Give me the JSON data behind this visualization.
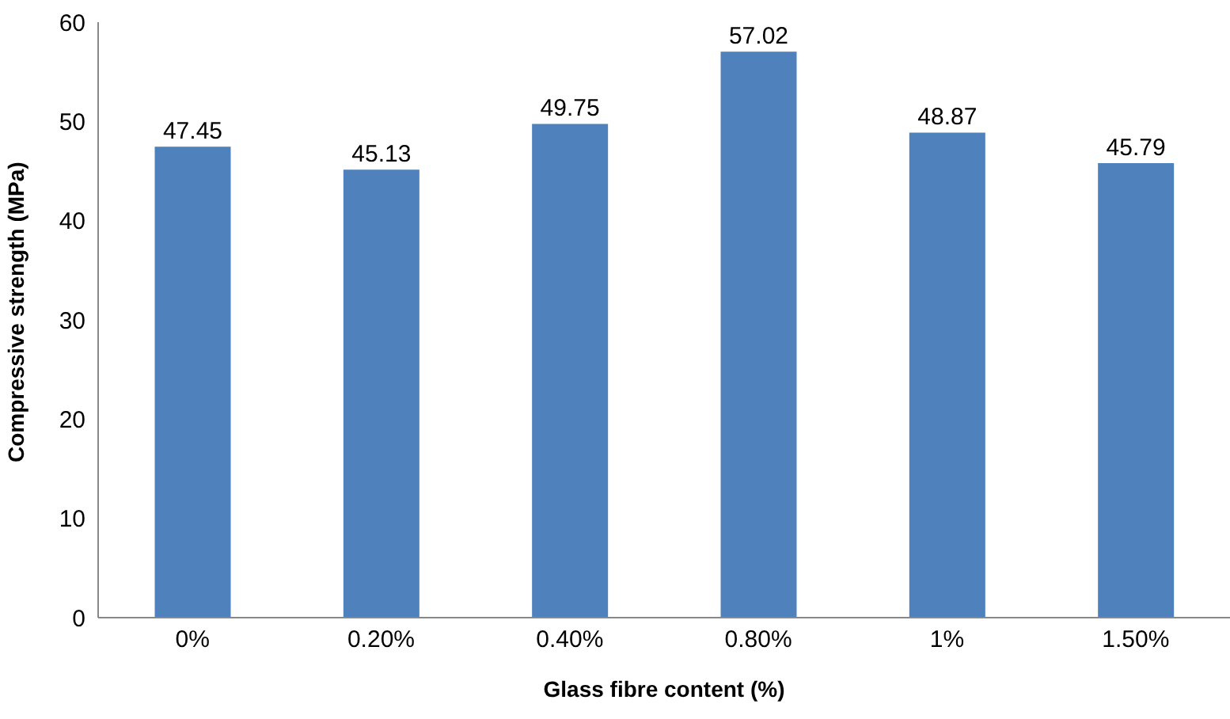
{
  "chart_data": {
    "type": "bar",
    "xlabel": "Glass fibre content (%)",
    "ylabel": "Compressive strength  (MPa)",
    "categories": [
      "0%",
      "0.20%",
      "0.40%",
      "0.80%",
      "1%",
      "1.50%"
    ],
    "values": [
      47.45,
      45.13,
      49.75,
      57.02,
      48.87,
      45.79
    ],
    "color": "#4f81bd",
    "ylim": [
      0,
      60
    ],
    "yticks": [
      0,
      10,
      20,
      30,
      40,
      50,
      60
    ],
    "grid": false,
    "data_labels": true
  }
}
